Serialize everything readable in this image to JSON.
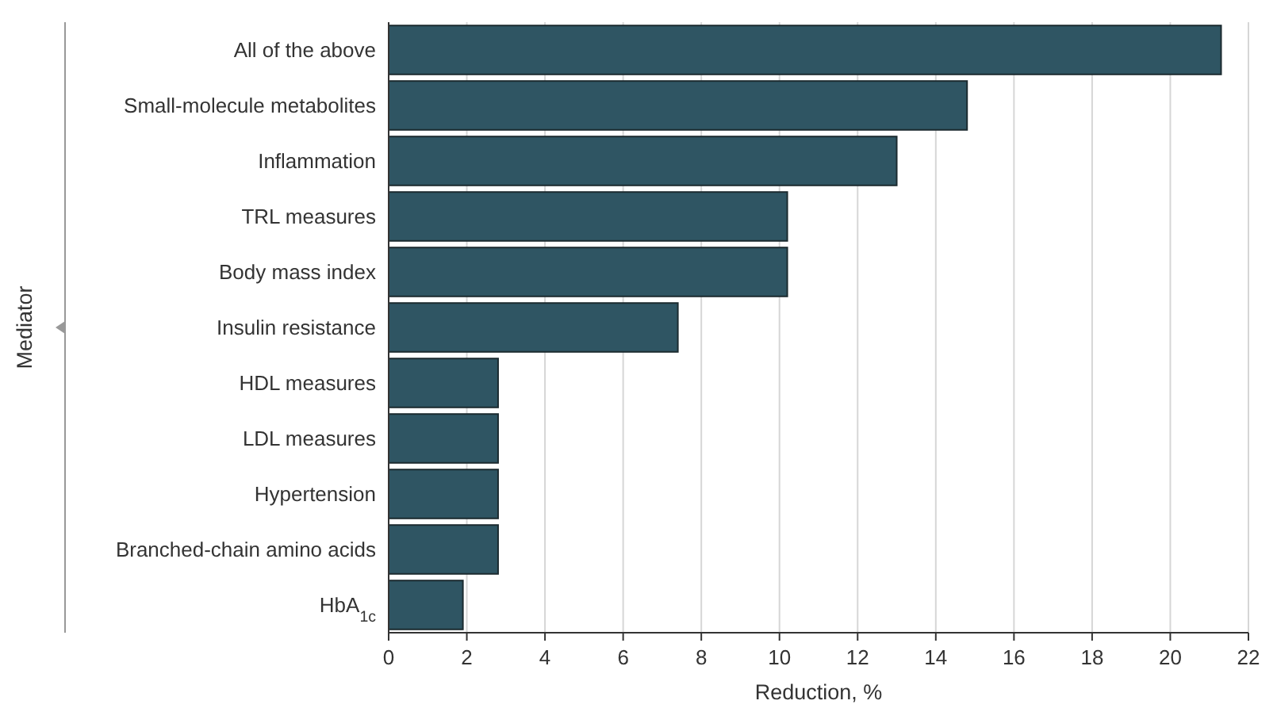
{
  "chart_data": {
    "type": "bar",
    "orientation": "horizontal",
    "xlabel": "Reduction, %",
    "ylabel": "Mediator",
    "categories": [
      "All of the above",
      "Small-molecule metabolites",
      "Inflammation",
      "TRL measures",
      "Body mass index",
      "Insulin resistance",
      "HDL measures",
      "LDL measures",
      "Hypertension",
      "Branched-chain amino acids",
      "HbA$_{1c}$"
    ],
    "values": [
      21.3,
      14.8,
      13.0,
      10.2,
      10.2,
      7.4,
      2.8,
      2.8,
      2.8,
      2.8,
      1.9
    ],
    "color": "#2f5563",
    "xlim": [
      0,
      22
    ],
    "xticks": [
      0,
      2,
      4,
      6,
      8,
      10,
      12,
      14,
      16,
      18,
      20,
      22
    ],
    "grid": "x"
  }
}
